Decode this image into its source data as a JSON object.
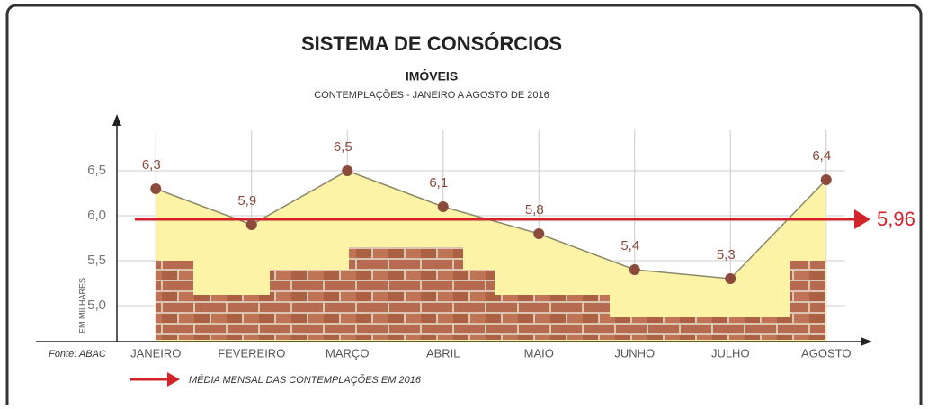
{
  "chart_data": {
    "type": "line",
    "title": "SISTEMA DE CONSÓRCIOS",
    "subtitle": "IMÓVEIS",
    "subtitle2": "CONTEMPLAÇÕES - JANEIRO A AGOSTO DE 2016",
    "y_label": "EM MILHARES",
    "source": "Fonte: ABAC",
    "categories": [
      "JANEIRO",
      "FEVEREIRO",
      "MARÇO",
      "ABRIL",
      "MAIO",
      "JUNHO",
      "JULHO",
      "AGOSTO"
    ],
    "values": [
      6.3,
      5.9,
      6.5,
      6.1,
      5.8,
      5.4,
      5.3,
      6.4
    ],
    "value_labels": [
      "6,3",
      "5,9",
      "6,5",
      "6,1",
      "5,8",
      "5,4",
      "5,3",
      "6,4"
    ],
    "color": "#8b4a3c",
    "line_color": "#8a8a6a",
    "area_color": "#fdf3a6",
    "ylim": [
      4.6,
      7.1
    ],
    "yticks": [
      {
        "value": 5.0,
        "label": "5,0"
      },
      {
        "value": 5.5,
        "label": "5,5"
      },
      {
        "value": 6.0,
        "label": "6,0"
      },
      {
        "value": 6.5,
        "label": "6,5"
      }
    ],
    "grid": true,
    "average": {
      "value": 5.96,
      "label": "5,96",
      "color": "#d2232a",
      "legend": "MÉDIA MENSAL DAS CONTEMPLAÇÕES EM 2016"
    }
  }
}
